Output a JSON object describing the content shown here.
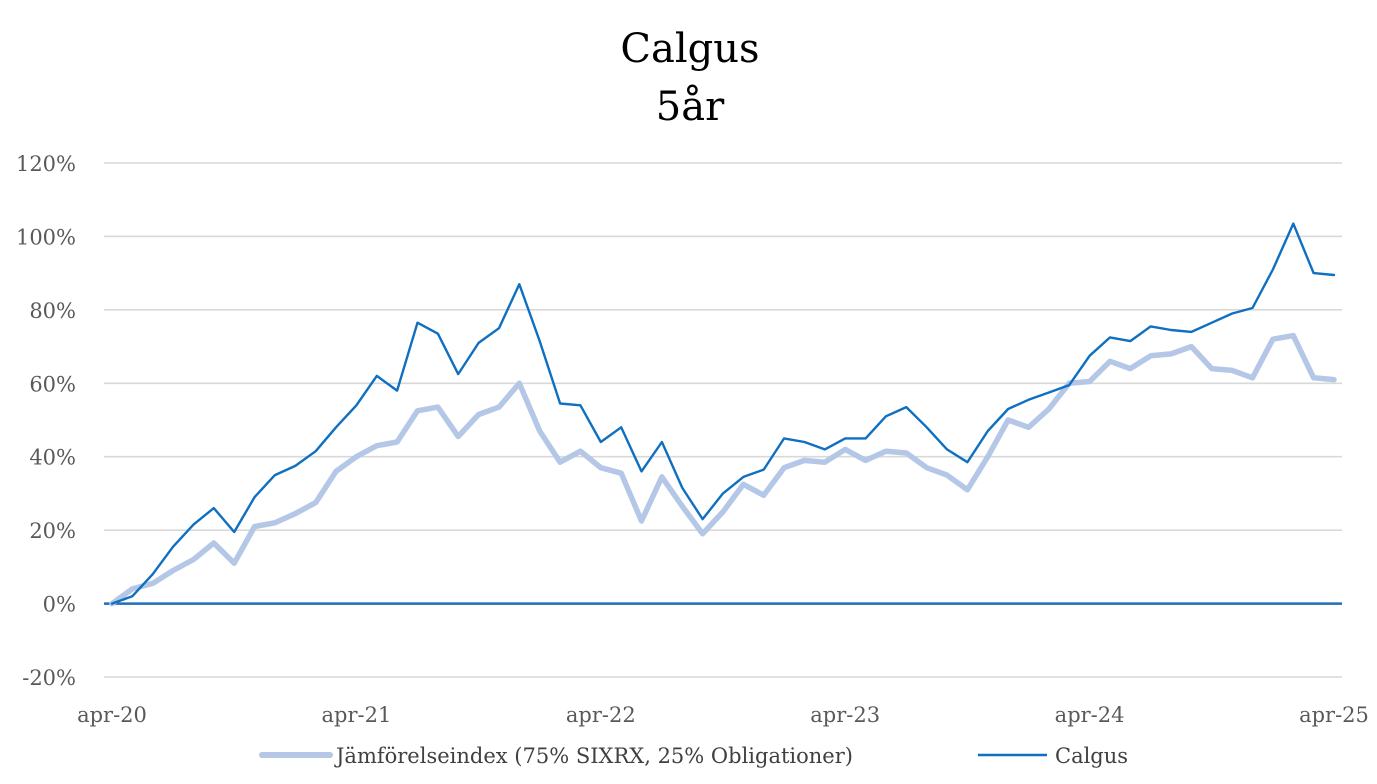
{
  "colors": {
    "grid": "#d9d9d9",
    "zero_line": "#1f6fb8",
    "benchmark": "#b4c7e7",
    "fund": "#0f6fc0"
  },
  "chart_data": {
    "type": "line",
    "title": "Calgus",
    "subtitle": "5år",
    "xlabel": "",
    "ylabel": "",
    "ylim": [
      -0.2,
      1.2
    ],
    "yticks": [
      -0.2,
      0,
      0.2,
      0.4,
      0.6,
      0.8,
      1.0,
      1.2
    ],
    "ytick_labels": [
      "-20%",
      "0%",
      "20%",
      "40%",
      "60%",
      "80%",
      "100%",
      "120%"
    ],
    "x_tick_labels": [
      "apr-20",
      "apr-21",
      "apr-22",
      "apr-23",
      "apr-24",
      "apr-25"
    ],
    "x_tick_months": [
      0,
      12,
      24,
      36,
      48,
      60
    ],
    "grid": true,
    "legend_position": "bottom",
    "series": [
      {
        "name": "Jämförelseindex (75% SIXRX, 25% Obligationer)",
        "values": [
          0.0,
          0.04,
          0.055,
          0.09,
          0.12,
          0.165,
          0.11,
          0.21,
          0.22,
          0.245,
          0.275,
          0.36,
          0.4,
          0.43,
          0.44,
          0.525,
          0.535,
          0.455,
          0.515,
          0.535,
          0.6,
          0.47,
          0.385,
          0.415,
          0.37,
          0.355,
          0.225,
          0.345,
          0.265,
          0.19,
          0.25,
          0.325,
          0.295,
          0.37,
          0.39,
          0.385,
          0.42,
          0.39,
          0.415,
          0.41,
          0.37,
          0.35,
          0.31,
          0.4,
          0.5,
          0.48,
          0.53,
          0.6,
          0.605,
          0.66,
          0.64,
          0.675,
          0.68,
          0.7,
          0.64,
          0.635,
          0.615,
          0.72,
          0.73,
          0.615,
          0.61
        ]
      },
      {
        "name": "Calgus",
        "values": [
          0.0,
          0.02,
          0.08,
          0.155,
          0.215,
          0.26,
          0.195,
          0.29,
          0.35,
          0.375,
          0.415,
          0.48,
          0.54,
          0.62,
          0.58,
          0.765,
          0.735,
          0.625,
          0.71,
          0.75,
          0.87,
          0.715,
          0.545,
          0.54,
          0.44,
          0.48,
          0.36,
          0.44,
          0.315,
          0.23,
          0.3,
          0.345,
          0.365,
          0.45,
          0.44,
          0.42,
          0.45,
          0.45,
          0.51,
          0.535,
          0.48,
          0.42,
          0.385,
          0.47,
          0.53,
          0.555,
          0.575,
          0.595,
          0.675,
          0.725,
          0.715,
          0.755,
          0.745,
          0.74,
          0.765,
          0.79,
          0.805,
          0.91,
          1.035,
          0.9,
          0.895
        ]
      }
    ]
  }
}
